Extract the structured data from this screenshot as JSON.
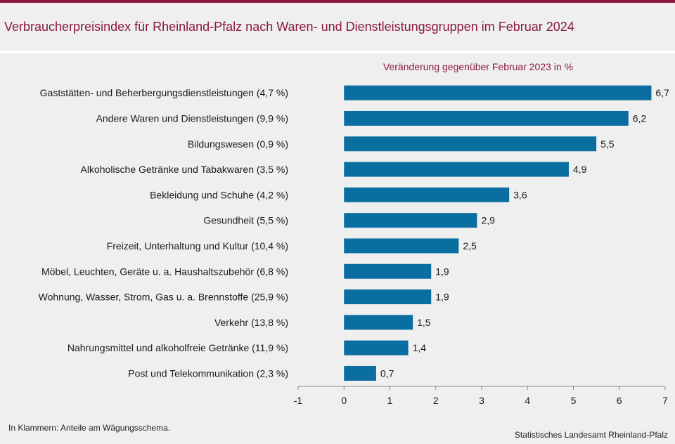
{
  "header": {
    "title": "Verbraucherpreisindex für Rheinland-Pfalz nach Waren- und Dienstleistungsgruppen im Februar 2024"
  },
  "footer": {
    "note": "In Klammern: Anteile am Wägungsschema.",
    "source": "Statistisches Landesamt Rheinland-Pfalz"
  },
  "colors": {
    "accent": "#8b1a3a",
    "bar": "#0a6fa0",
    "background": "#efefef"
  },
  "chart_data": {
    "type": "bar",
    "orientation": "horizontal",
    "subtitle": "Veränderung gegenüber Februar 2023 in %",
    "categories": [
      "Gaststätten- und Beherbergungsdienstleistungen (4,7 %)",
      "Andere Waren und Dienstleistungen (9,9 %)",
      "Bildungswesen (0,9 %)",
      "Alkoholische Getränke und Tabakwaren (3,5 %)",
      "Bekleidung und Schuhe (4,2 %)",
      "Gesundheit (5,5 %)",
      "Freizeit, Unterhaltung und Kultur (10,4 %)",
      "Möbel, Leuchten, Geräte u. a. Haushaltszubehör (6,8 %)",
      "Wohnung, Wasser, Strom, Gas u. a. Brennstoffe (25,9 %)",
      "Verkehr (13,8 %)",
      "Nahrungsmittel und alkoholfreie Getränke (11,9 %)",
      "Post und Telekommunikation (2,3 %)"
    ],
    "values": [
      6.7,
      6.2,
      5.5,
      4.9,
      3.6,
      2.9,
      2.5,
      1.9,
      1.9,
      1.5,
      1.4,
      0.7
    ],
    "value_labels": [
      "6,7",
      "6,2",
      "5,5",
      "4,9",
      "3,6",
      "2,9",
      "2,5",
      "1,9",
      "1,9",
      "1,5",
      "1,4",
      "0,7"
    ],
    "xlim": [
      -1,
      7
    ],
    "xticks": [
      -1,
      0,
      1,
      2,
      3,
      4,
      5,
      6,
      7
    ],
    "grid": false
  }
}
